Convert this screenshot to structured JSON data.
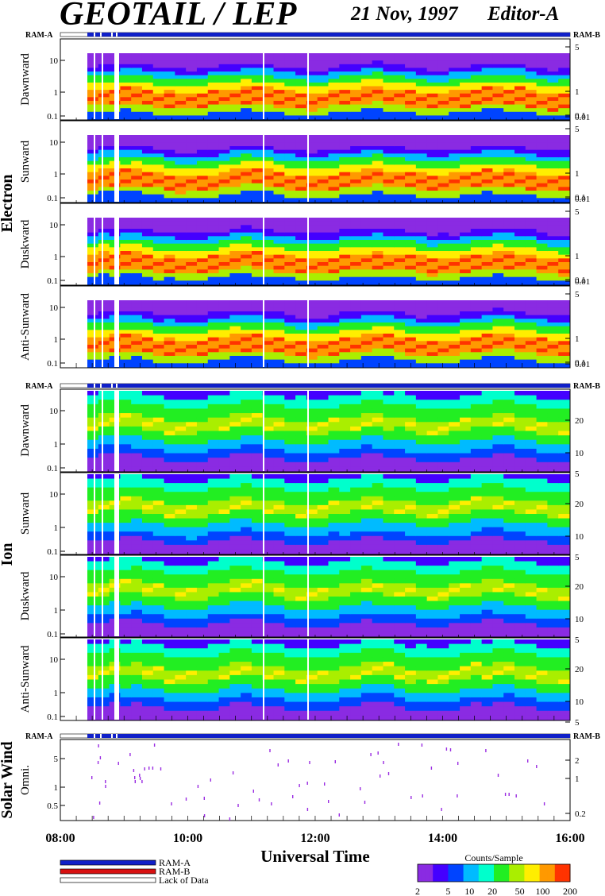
{
  "header": {
    "title": "GEOTAIL / LEP",
    "date": "21 Nov, 1997",
    "editor": "Editor-A"
  },
  "labels": {
    "ram_a": "RAM-A",
    "ram_b": "RAM-B",
    "electron_group": "Electron",
    "ion_group": "Ion",
    "solarwind_group": "Solar Wind",
    "xaxis_title": "Universal Time",
    "colorbar_title": "Counts/Sample"
  },
  "legend": [
    {
      "label": "RAM-A",
      "color": "#1020c8"
    },
    {
      "label": "RAM-B",
      "color": "#d81010"
    },
    {
      "label": "Lack of Data",
      "color": "#ffffff"
    }
  ],
  "colors": {
    "ram_a": "#1020c8",
    "lack_of_data": "#ffffff",
    "colormap": [
      "#ffffff",
      "#8a2be2",
      "#4400ff",
      "#0044ff",
      "#00bbff",
      "#00ffcc",
      "#22ee22",
      "#aaee00",
      "#ffee00",
      "#ff9900",
      "#ff3300"
    ]
  },
  "chart_data": [
    {
      "type": "heatmap",
      "group": "Electron",
      "panel": "Dawnward",
      "yticks_left": [
        "10",
        "1",
        "0.1"
      ],
      "yticks_right": [
        "5",
        "1",
        "0.1",
        "0.01"
      ]
    },
    {
      "type": "heatmap",
      "group": "Electron",
      "panel": "Sunward",
      "yticks_left": [
        "10",
        "1",
        "0.1"
      ],
      "yticks_right": [
        "5",
        "1",
        "0.1",
        "0.01"
      ]
    },
    {
      "type": "heatmap",
      "group": "Electron",
      "panel": "Duskward",
      "yticks_left": [
        "10",
        "1",
        "0.1"
      ],
      "yticks_right": [
        "5",
        "1",
        "0.1",
        "0.01"
      ]
    },
    {
      "type": "heatmap",
      "group": "Electron",
      "panel": "Anti-Sunward",
      "yticks_left": [
        "10",
        "1",
        "0.1"
      ],
      "yticks_right": [
        "5",
        "1",
        "0.1",
        "0.01"
      ]
    },
    {
      "type": "heatmap",
      "group": "Ion",
      "panel": "Dawnward",
      "yticks_left": [
        "10",
        "1",
        "0.1"
      ],
      "yticks_right": [
        "20",
        "10",
        "5"
      ]
    },
    {
      "type": "heatmap",
      "group": "Ion",
      "panel": "Sunward",
      "yticks_left": [
        "10",
        "1",
        "0.1"
      ],
      "yticks_right": [
        "20",
        "10",
        "5"
      ]
    },
    {
      "type": "heatmap",
      "group": "Ion",
      "panel": "Duskward",
      "yticks_left": [
        "10",
        "1",
        "0.1"
      ],
      "yticks_right": [
        "20",
        "10",
        "5"
      ]
    },
    {
      "type": "heatmap",
      "group": "Ion",
      "panel": "Anti-Sunward",
      "yticks_left": [
        "10",
        "1",
        "0.1"
      ],
      "yticks_right": [
        "20",
        "10",
        "5"
      ]
    },
    {
      "type": "heatmap",
      "group": "Solar Wind",
      "panel": "Omni.",
      "yticks_left": [
        "5",
        "1",
        "0.5"
      ],
      "yticks_right": [
        "2",
        "1",
        "0.2"
      ]
    },
    {
      "type": "colorbar",
      "title": "Counts/Sample",
      "ticks": [
        "2",
        "5",
        "10",
        "20",
        "50",
        "100",
        "200"
      ]
    },
    {
      "type": "x-axis",
      "xlabel": "Universal Time",
      "ticks": [
        "08:00",
        "10:00",
        "12:00",
        "14:00",
        "16:00"
      ]
    }
  ]
}
